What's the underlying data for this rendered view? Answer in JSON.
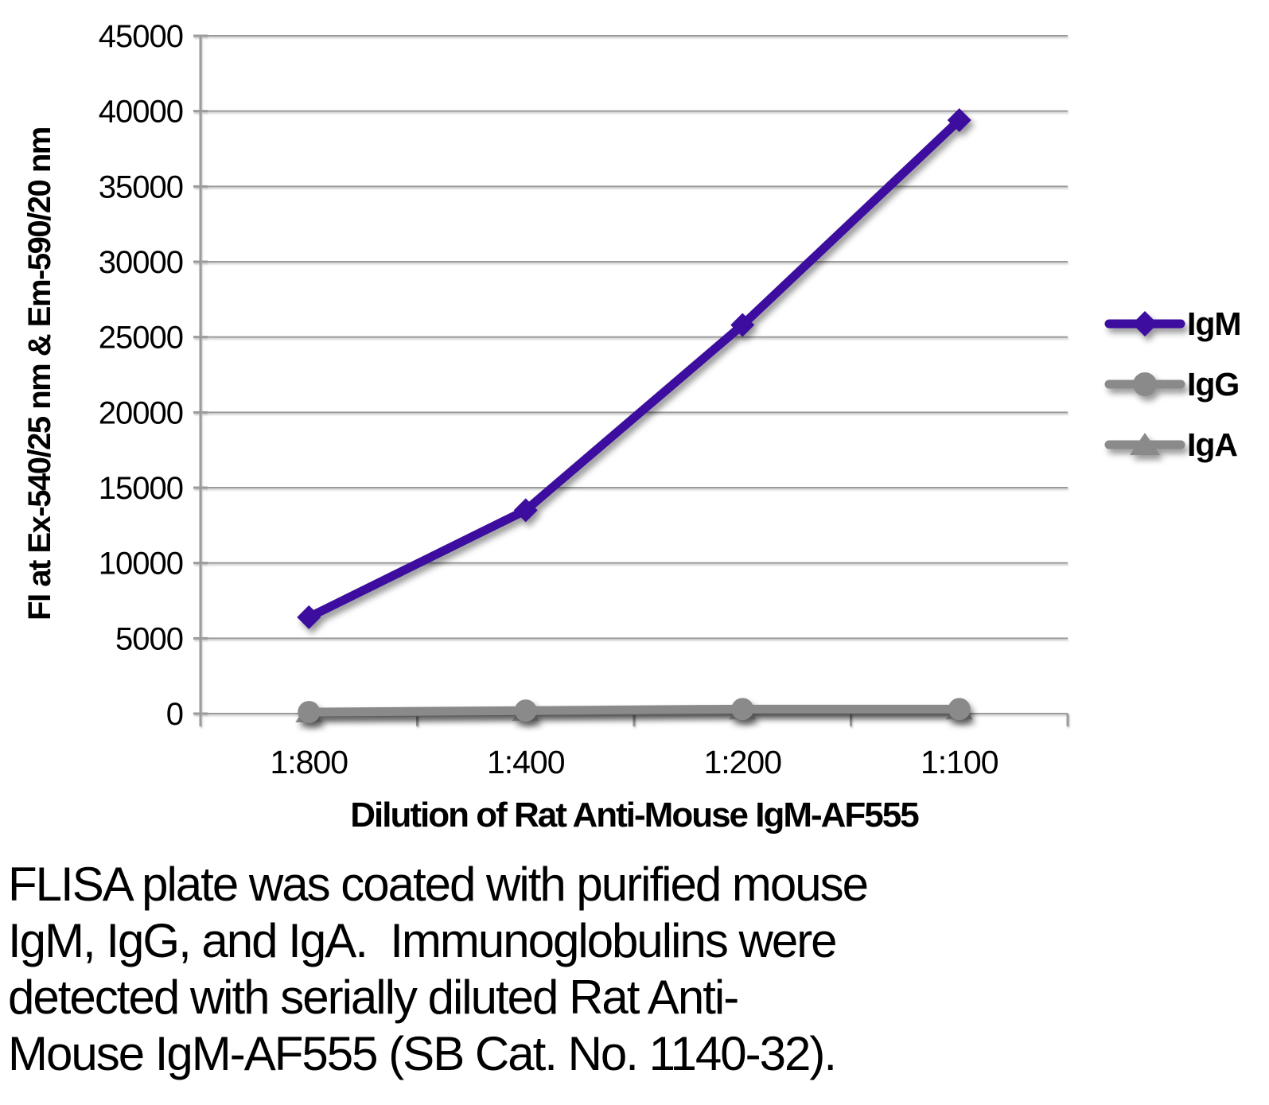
{
  "chart_data": {
    "type": "line",
    "categories": [
      "1:800",
      "1:400",
      "1:200",
      "1:100"
    ],
    "series": [
      {
        "name": "IgM",
        "values": [
          6400,
          13500,
          25800,
          39400
        ],
        "color": "#3C0D9E",
        "marker": "diamond"
      },
      {
        "name": "IgG",
        "values": [
          100,
          200,
          300,
          300
        ],
        "color": "#8A8A8A",
        "marker": "circle"
      },
      {
        "name": "IgA",
        "values": [
          50,
          150,
          250,
          250
        ],
        "color": "#8A8A8A",
        "marker": "triangle"
      }
    ],
    "xlabel": "Dilution of Rat Anti-Mouse IgM-AF555",
    "ylabel": "FI at Ex-540/25 nm & Em-590/20 nm",
    "ylim": [
      0,
      45000
    ],
    "ytick_step": 5000,
    "grid": true,
    "legend_position": "right",
    "colors": {
      "gridline": "#9B9B9B",
      "axis": "#9B9B9B",
      "text": "#000000"
    }
  },
  "caption": {
    "lines": [
      "FLISA plate was coated with purified mouse",
      "IgM, IgG, and IgA.  Immunoglobulins were",
      "detected with serially diluted Rat Anti-",
      "Mouse IgM-AF555 (SB Cat. No. 1140-32)."
    ]
  }
}
